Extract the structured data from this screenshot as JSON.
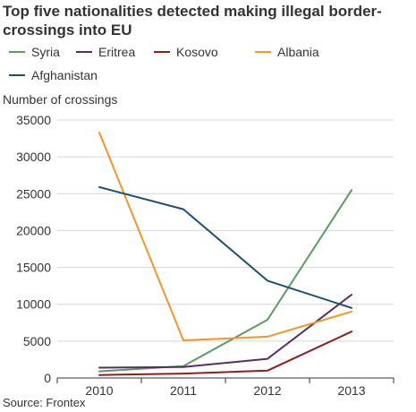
{
  "chart_data": {
    "type": "line",
    "title": "Top five nationalities detected making illegal border-crossings into EU",
    "ylabel": "Number of crossings",
    "xlabel": "",
    "source": "Source: Frontex",
    "x": [
      "2010",
      "2011",
      "2012",
      "2013"
    ],
    "ylim": [
      0,
      35000
    ],
    "yticks": [
      0,
      5000,
      10000,
      15000,
      20000,
      25000,
      30000,
      35000
    ],
    "grid": true,
    "legend_position": "top",
    "series": [
      {
        "name": "Syria",
        "color": "#5a9a63",
        "values": [
          900,
          1600,
          7900,
          25500
        ]
      },
      {
        "name": "Eritrea",
        "color": "#5a2d5f",
        "values": [
          1400,
          1500,
          2600,
          11300
        ]
      },
      {
        "name": "Kosovo",
        "color": "#8a1f1f",
        "values": [
          400,
          600,
          1000,
          6300
        ]
      },
      {
        "name": "Albania",
        "color": "#f0962d",
        "values": [
          33300,
          5100,
          5600,
          9000
        ]
      },
      {
        "name": "Afghanistan",
        "color": "#1f4e6f",
        "values": [
          25900,
          22900,
          13200,
          9500
        ]
      }
    ]
  }
}
